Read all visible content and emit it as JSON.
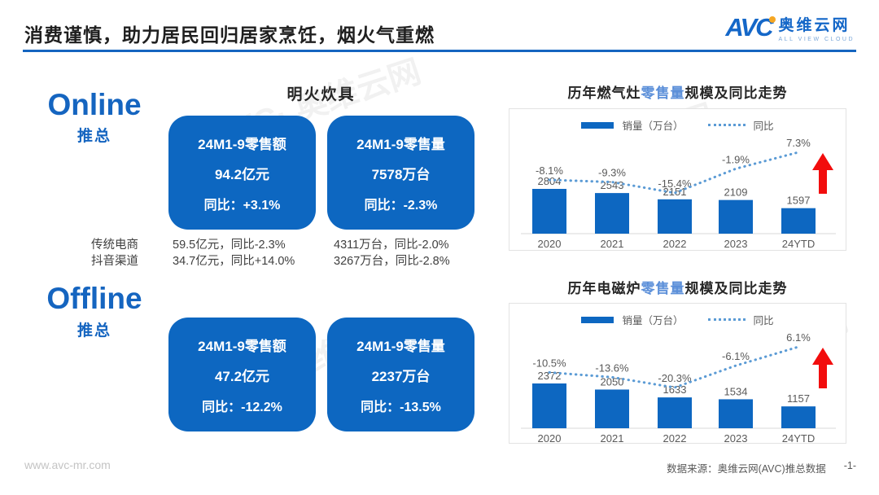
{
  "header": {
    "title": "消费谨慎，助力居民回归居家烹饪，烟火气重燃",
    "logo": {
      "mark": "AVC",
      "name": "奥维云网",
      "tagline": "ALL VIEW CLOUD"
    }
  },
  "watermark": "AVC· 奥维云网",
  "left": {
    "column_header": "明火炊具",
    "online": {
      "label": "Online",
      "sublabel": "推总",
      "cards": [
        {
          "title": "24M1-9零售额",
          "value": "94.2亿元",
          "yoy": "同比：+3.1%"
        },
        {
          "title": "24M1-9零售量",
          "value": "7578万台",
          "yoy": "同比：-2.3%"
        }
      ],
      "channels": [
        {
          "name": "传统电商",
          "amount": "59.5亿元，同比-2.3%",
          "volume": "4311万台，同比-2.0%"
        },
        {
          "name": "抖音渠道",
          "amount": "34.7亿元，同比+14.0%",
          "volume": "3267万台，同比-2.8%"
        }
      ]
    },
    "offline": {
      "label": "Offline",
      "sublabel": "推总",
      "cards": [
        {
          "title": "24M1-9零售额",
          "value": "47.2亿元",
          "yoy": "同比：-12.2%"
        },
        {
          "title": "24M1-9零售量",
          "value": "2237万台",
          "yoy": "同比：-13.5%"
        }
      ]
    }
  },
  "chart_data": [
    {
      "type": "bar",
      "title_prefix": "历年燃气灶",
      "title_highlight": "零售量",
      "title_suffix": "规模及同比走势",
      "categories": [
        "2020",
        "2021",
        "2022",
        "2023",
        "24YTD"
      ],
      "legend": [
        "销量（万台）",
        "同比"
      ],
      "series": [
        {
          "name": "销量（万台）",
          "type": "bar",
          "values": [
            2804,
            2543,
            2151,
            2109,
            1597
          ]
        },
        {
          "name": "同比",
          "type": "line",
          "values": [
            -8.1,
            -9.3,
            -15.4,
            -1.9,
            7.3
          ],
          "labels": [
            "-8.1%",
            "-9.3%",
            "-15.4%",
            "-1.9%",
            "7.3%"
          ]
        }
      ],
      "annotations": [
        "red-up-arrow"
      ],
      "grid": false,
      "legend_position": "top"
    },
    {
      "type": "bar",
      "title_prefix": "历年电磁炉",
      "title_highlight": "零售量",
      "title_suffix": "规模及同比走势",
      "categories": [
        "2020",
        "2021",
        "2022",
        "2023",
        "24YTD"
      ],
      "legend": [
        "销量（万台）",
        "同比"
      ],
      "series": [
        {
          "name": "销量（万台）",
          "type": "bar",
          "values": [
            2372,
            2050,
            1633,
            1534,
            1157
          ]
        },
        {
          "name": "同比",
          "type": "line",
          "values": [
            -10.5,
            -13.6,
            -20.3,
            -6.1,
            6.1
          ],
          "labels": [
            "-10.5%",
            "-13.6%",
            "-20.3%",
            "-6.1%",
            "6.1%"
          ]
        }
      ],
      "annotations": [
        "red-up-arrow"
      ],
      "grid": false,
      "legend_position": "top"
    }
  ],
  "colors": {
    "primary_blue": "#0d67c1",
    "highlight_blue": "#5b8fd9",
    "line_blue": "#5b9bd5",
    "arrow_red": "#f20d0d",
    "label_gray": "#595959",
    "axis_gray": "#d9d9d9"
  },
  "footer": {
    "website": "www.avc-mr.com",
    "source": "数据来源：奥维云网(AVC)推总数据",
    "page": "-1-"
  }
}
